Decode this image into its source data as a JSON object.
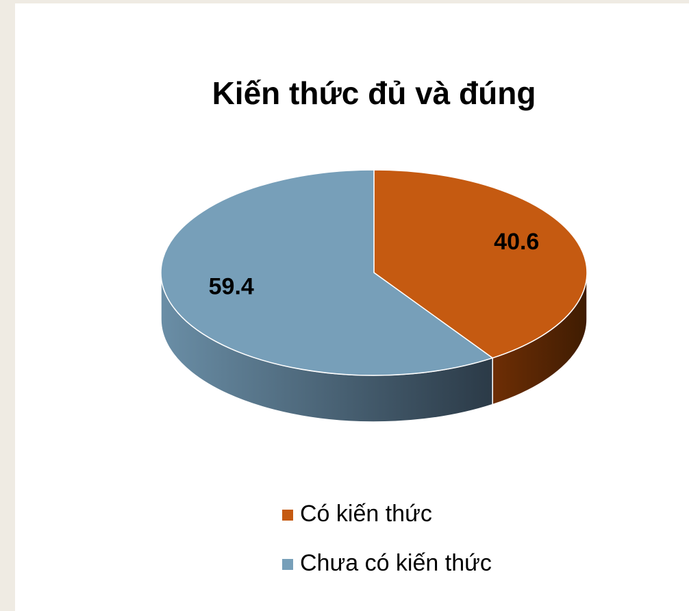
{
  "chart_data": {
    "type": "pie3d",
    "title": "Kiến thức đủ và đúng",
    "categories": [
      "Có kiến thức",
      "Chưa có kiến thức"
    ],
    "values": [
      40.6,
      59.4
    ],
    "colors": [
      "#c55a11",
      "#779fb9"
    ],
    "legend": "bottom"
  }
}
